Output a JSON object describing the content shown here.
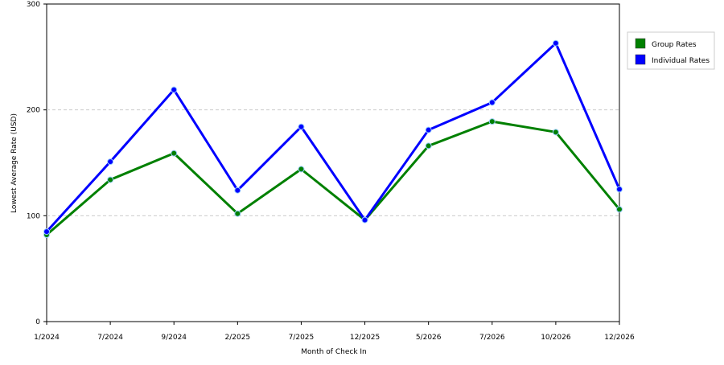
{
  "chart_data": {
    "type": "line",
    "x_label": "Month of Check In",
    "y_label": "Lowest Average Rate (USD)",
    "categories": [
      "1/2024",
      "7/2024",
      "9/2024",
      "2/2025",
      "7/2025",
      "12/2025",
      "5/2026",
      "7/2026",
      "10/2026",
      "12/2026"
    ],
    "series": [
      {
        "name": "Group Rates",
        "color": "#008000",
        "values": [
          82,
          134,
          159,
          102,
          144,
          96,
          166,
          189,
          179,
          106
        ]
      },
      {
        "name": "Individual Rates",
        "color": "#0000ff",
        "values": [
          85,
          151,
          219,
          124,
          184,
          96,
          181,
          207,
          263,
          125
        ]
      }
    ],
    "ylim": [
      0,
      300
    ],
    "yticks": [
      0,
      100,
      200,
      300
    ],
    "grid": true,
    "legend": "right"
  }
}
